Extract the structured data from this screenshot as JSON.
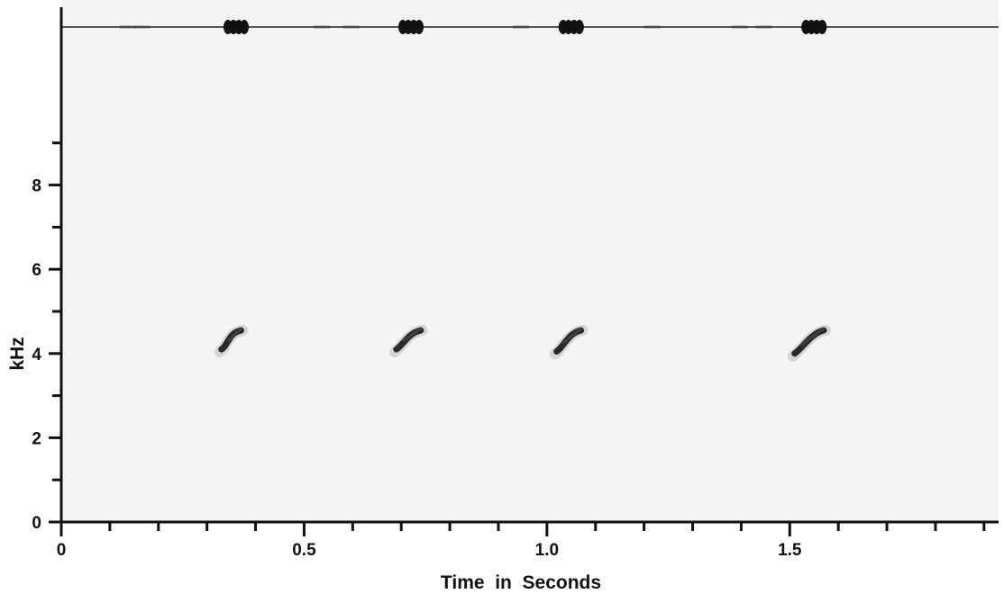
{
  "chart_data": {
    "type": "scatter",
    "chart_kind": "sonogram with amplitude waveform",
    "xlabel": "Time  in  Seconds",
    "ylabel": "kHz",
    "xlim": [
      0,
      1.93
    ],
    "ylim": [
      0,
      10
    ],
    "x_ticks": [
      0,
      0.5,
      1.0,
      1.5
    ],
    "x_tick_labels": [
      "0",
      "0.5",
      "1.0",
      "1.5"
    ],
    "x_minor_step": 0.1,
    "y_ticks": [
      0,
      2,
      4,
      6,
      8
    ],
    "y_tick_labels": [
      "0",
      "2",
      "4",
      "6",
      "8"
    ],
    "y_minor_step": 1,
    "grid": false,
    "series": [
      {
        "values": [
          {
            "t_start": 0.33,
            "t_end": 0.37,
            "f_start": 4.1,
            "f_end": 4.55
          },
          {
            "t_start": 0.69,
            "t_end": 0.74,
            "f_start": 4.1,
            "f_end": 4.55
          },
          {
            "t_start": 1.02,
            "t_end": 1.07,
            "f_start": 4.05,
            "f_end": 4.55
          },
          {
            "t_start": 1.51,
            "t_end": 1.57,
            "f_start": 4.0,
            "f_end": 4.55
          }
        ]
      }
    ],
    "waveform_bursts": [
      0.36,
      0.72,
      1.05,
      1.55
    ],
    "colors": {
      "background": "#f4f4f4",
      "ink": "#111111",
      "note": "#2a2a2a"
    }
  }
}
